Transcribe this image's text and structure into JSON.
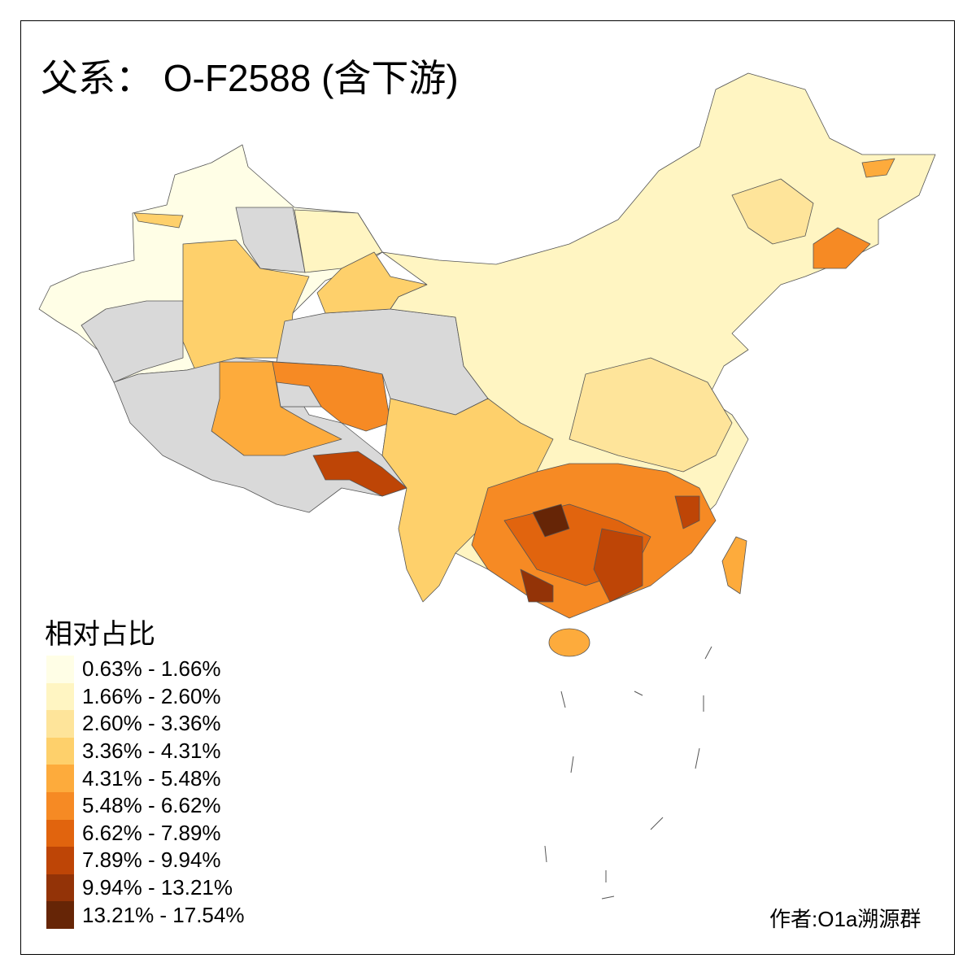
{
  "title": "父系： O-F2588 (含下游)",
  "legend": {
    "title": "相对占比",
    "classes": [
      {
        "label": "0.63% - 1.66%",
        "color": "#FFFEE6"
      },
      {
        "label": "1.66% - 2.60%",
        "color": "#FFF5C2"
      },
      {
        "label": "2.60% - 3.36%",
        "color": "#FEE49A"
      },
      {
        "label": "3.36% - 4.31%",
        "color": "#FED06B"
      },
      {
        "label": "4.31% - 5.48%",
        "color": "#FDAB3C"
      },
      {
        "label": "5.48% - 6.62%",
        "color": "#F68A24"
      },
      {
        "label": "6.62% - 7.89%",
        "color": "#E1640E"
      },
      {
        "label": "7.89% - 9.94%",
        "color": "#BE4506"
      },
      {
        "label": "9.94% - 13.21%",
        "color": "#933307"
      },
      {
        "label": "13.21% - 17.54%",
        "color": "#662506"
      }
    ],
    "no_data_color": "#D9D9D9"
  },
  "author": "作者:O1a溯源群"
}
